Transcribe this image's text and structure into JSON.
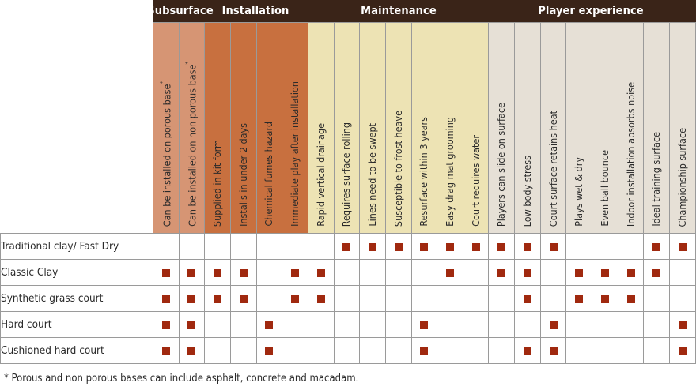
{
  "groups": [
    {
      "label": "Subsurface",
      "class": "sub"
    },
    {
      "label": "Installation",
      "class": "ins"
    },
    {
      "label": "Maintenance",
      "class": "mai"
    },
    {
      "label": "Player experience",
      "class": "ply"
    }
  ],
  "columns": [
    {
      "label": "Can be installed on porous base",
      "note": "*",
      "group": 0
    },
    {
      "label": "Can be installed on non porous base",
      "note": "*",
      "group": 0
    },
    {
      "label": "Supplied in kit form",
      "note": "",
      "group": 1
    },
    {
      "label": "Installs in under 2 days",
      "note": "",
      "group": 1
    },
    {
      "label": "Chemical fumes hazard",
      "note": "",
      "group": 1
    },
    {
      "label": "Immediate play after installation",
      "note": "",
      "group": 1
    },
    {
      "label": "Rapid vertical drainage",
      "note": "",
      "group": 2
    },
    {
      "label": "Requires surface rolling",
      "note": "",
      "group": 2
    },
    {
      "label": "Lines need to be swept",
      "note": "",
      "group": 2
    },
    {
      "label": "Susceptible to frost heave",
      "note": "",
      "group": 2
    },
    {
      "label": "Resurface within 3 years",
      "note": "",
      "group": 2
    },
    {
      "label": "Easy drag mat grooming",
      "note": "",
      "group": 2
    },
    {
      "label": "Court requires water",
      "note": "",
      "group": 2
    },
    {
      "label": "Players can slide on surface",
      "note": "",
      "group": 3
    },
    {
      "label": "Low body stress",
      "note": "",
      "group": 3
    },
    {
      "label": "Court surface retains heat",
      "note": "",
      "group": 3
    },
    {
      "label": "Plays wet & dry",
      "note": "",
      "group": 3
    },
    {
      "label": "Even ball bounce",
      "note": "",
      "group": 3
    },
    {
      "label": "Indoor installation absorbs noise",
      "note": "",
      "group": 3
    },
    {
      "label": "Ideal training surface",
      "note": "",
      "group": 3
    },
    {
      "label": "Championship surface",
      "note": "",
      "group": 3
    }
  ],
  "rows": [
    {
      "label": "Traditional clay/ Fast Dry",
      "marks": [
        0,
        0,
        0,
        0,
        0,
        0,
        0,
        1,
        1,
        1,
        1,
        1,
        1,
        1,
        1,
        1,
        0,
        0,
        0,
        1,
        1
      ]
    },
    {
      "label": "Classic Clay",
      "marks": [
        1,
        1,
        1,
        1,
        0,
        1,
        1,
        0,
        0,
        0,
        0,
        1,
        0,
        1,
        1,
        0,
        1,
        1,
        1,
        1,
        0
      ]
    },
    {
      "label": "Synthetic grass court",
      "marks": [
        1,
        1,
        1,
        1,
        0,
        1,
        1,
        0,
        0,
        0,
        0,
        0,
        0,
        0,
        1,
        0,
        1,
        1,
        1,
        0,
        0
      ]
    },
    {
      "label": "Hard court",
      "marks": [
        1,
        1,
        0,
        0,
        1,
        0,
        0,
        0,
        0,
        0,
        1,
        0,
        0,
        0,
        0,
        1,
        0,
        0,
        0,
        0,
        1
      ]
    },
    {
      "label": "Cushioned hard court",
      "marks": [
        1,
        1,
        0,
        0,
        1,
        0,
        0,
        0,
        0,
        0,
        1,
        0,
        0,
        0,
        1,
        1,
        0,
        0,
        0,
        0,
        1
      ]
    }
  ],
  "footnote": "* Porous and non porous bases can include asphalt, concrete and macadam.",
  "colors": {
    "band": "#3a2418",
    "subsurface": "#d69574",
    "installation": "#c8703f",
    "maintenance": "#ede3b4",
    "player_experience": "#e6e0d6",
    "mark": "#a0290f"
  }
}
